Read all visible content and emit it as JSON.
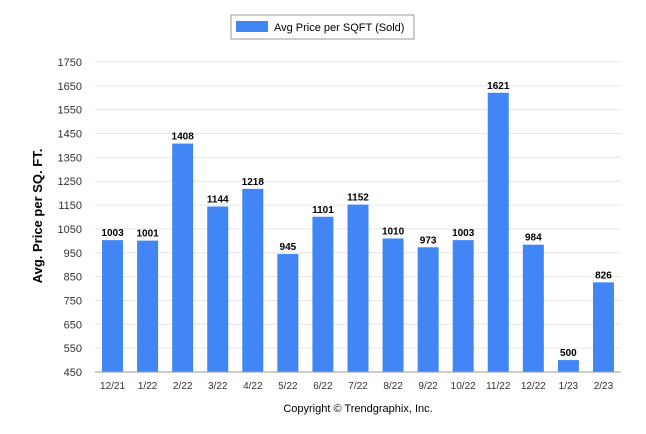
{
  "chart_data": {
    "type": "bar",
    "categories": [
      "12/21",
      "1/22",
      "2/22",
      "3/22",
      "4/22",
      "5/22",
      "6/22",
      "7/22",
      "8/22",
      "9/22",
      "10/22",
      "11/22",
      "12/22",
      "1/23",
      "2/23"
    ],
    "series": [
      {
        "name": "Avg Price per SQFT (Sold)",
        "values": [
          1003,
          1001,
          1408,
          1144,
          1218,
          945,
          1101,
          1152,
          1010,
          973,
          1003,
          1621,
          984,
          500,
          826
        ]
      }
    ],
    "ylabel": "Avg. Price per SQ. FT.",
    "xlabel": "",
    "ylim": [
      450,
      1750
    ],
    "yticks": [
      450,
      550,
      650,
      750,
      850,
      950,
      1050,
      1150,
      1250,
      1350,
      1450,
      1550,
      1650,
      1750
    ],
    "grid": true,
    "legend_position": "top-center",
    "bar_color": "#4285f4",
    "footer": "Copyright © Trendgraphix, Inc."
  }
}
